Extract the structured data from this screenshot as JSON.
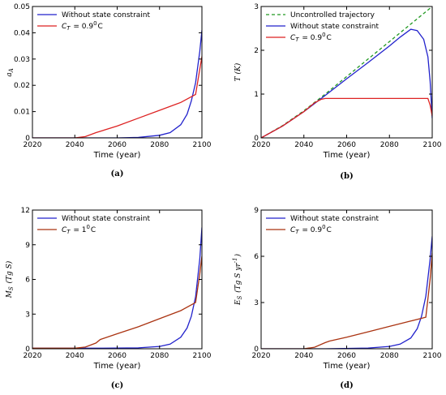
{
  "chart_data": [
    {
      "type": "line",
      "panel_label": "(a)",
      "xlabel": "Time (year)",
      "ylabel": "a_A",
      "xlim": [
        2020,
        2100
      ],
      "ylim": [
        0,
        0.05
      ],
      "xticks": [
        "2020",
        "2040",
        "2060",
        "2080",
        "2100"
      ],
      "yticks": [
        "0",
        "0.01",
        "0.02",
        "0.03",
        "0.04",
        "0.05"
      ],
      "legend_position": "top-left",
      "series": [
        {
          "name": "Without state constraint",
          "color": "#2222cc",
          "x": [
            2020,
            2040,
            2060,
            2070,
            2080,
            2085,
            2090,
            2093,
            2095,
            2097,
            2099,
            2100
          ],
          "y": [
            0,
            0,
            0,
            0.0002,
            0.001,
            0.002,
            0.005,
            0.009,
            0.014,
            0.021,
            0.033,
            0.041
          ]
        },
        {
          "name": "C_T = 0.9°C",
          "color": "#dd2222",
          "x": [
            2020,
            2040,
            2045,
            2050,
            2060,
            2070,
            2080,
            2090,
            2097,
            2100
          ],
          "y": [
            0,
            0,
            0.0005,
            0.002,
            0.0045,
            0.0075,
            0.0105,
            0.0135,
            0.0165,
            0.031
          ]
        }
      ]
    },
    {
      "type": "line",
      "panel_label": "(b)",
      "xlabel": "Time (year)",
      "ylabel": "T (K)",
      "xlim": [
        2020,
        2100
      ],
      "ylim": [
        0,
        3
      ],
      "xticks": [
        "2020",
        "2040",
        "2060",
        "2080",
        "2100"
      ],
      "yticks": [
        "0",
        "1",
        "2",
        "3"
      ],
      "legend_position": "top-left",
      "series": [
        {
          "name": "Uncontrolled trajectory",
          "color": "#229922",
          "dashed": true,
          "x": [
            2020,
            2030,
            2040,
            2050,
            2060,
            2070,
            2080,
            2090,
            2100
          ],
          "y": [
            0,
            0.28,
            0.62,
            1.0,
            1.4,
            1.8,
            2.2,
            2.6,
            3.0
          ]
        },
        {
          "name": "Without state constraint",
          "color": "#2222cc",
          "x": [
            2020,
            2030,
            2040,
            2050,
            2060,
            2070,
            2080,
            2085,
            2090,
            2093,
            2096,
            2098,
            2099,
            2100
          ],
          "y": [
            0,
            0.27,
            0.6,
            0.97,
            1.35,
            1.72,
            2.1,
            2.3,
            2.48,
            2.45,
            2.25,
            1.85,
            1.3,
            0.45
          ]
        },
        {
          "name": "C_T = 0.9°C",
          "color": "#dd2222",
          "x": [
            2020,
            2030,
            2040,
            2045,
            2048,
            2050,
            2070,
            2090,
            2098,
            2099,
            2100
          ],
          "y": [
            0,
            0.27,
            0.6,
            0.8,
            0.88,
            0.9,
            0.9,
            0.9,
            0.9,
            0.75,
            0.5
          ]
        }
      ]
    },
    {
      "type": "line",
      "panel_label": "(c)",
      "xlabel": "Time (year)",
      "ylabel": "M_S (Tg S)",
      "xlim": [
        2020,
        2100
      ],
      "ylim": [
        0,
        12
      ],
      "xticks": [
        "2020",
        "2040",
        "2060",
        "2080",
        "2100"
      ],
      "yticks": [
        "0",
        "3",
        "6",
        "9",
        "12"
      ],
      "legend_position": "top-left",
      "series": [
        {
          "name": "Without state constraint",
          "color": "#2222cc",
          "x": [
            2020,
            2050,
            2070,
            2080,
            2085,
            2090,
            2093,
            2095,
            2097,
            2099,
            2100
          ],
          "y": [
            0.05,
            0.05,
            0.08,
            0.2,
            0.4,
            1.0,
            1.8,
            2.8,
            4.5,
            7.8,
            10.5
          ]
        },
        {
          "name": "C_T = 1°C",
          "color": "#aa3311",
          "x": [
            2020,
            2040,
            2045,
            2050,
            2052,
            2060,
            2070,
            2080,
            2090,
            2097,
            2099,
            2100
          ],
          "y": [
            0.05,
            0.05,
            0.15,
            0.5,
            0.8,
            1.3,
            1.9,
            2.6,
            3.3,
            4.0,
            6.5,
            8.0
          ]
        }
      ]
    },
    {
      "type": "line",
      "panel_label": "(d)",
      "xlabel": "Time (year)",
      "ylabel": "E_S (Tg S yr^-1)",
      "xlim": [
        2020,
        2100
      ],
      "ylim": [
        0,
        9
      ],
      "xticks": [
        "2020",
        "2040",
        "2060",
        "2080",
        "2100"
      ],
      "yticks": [
        "0",
        "3",
        "6",
        "9"
      ],
      "legend_position": "top-left",
      "series": [
        {
          "name": "Without state constraint",
          "color": "#2222cc",
          "x": [
            2020,
            2050,
            2070,
            2080,
            2085,
            2090,
            2093,
            2095,
            2097,
            2099,
            2100
          ],
          "y": [
            0,
            0,
            0.05,
            0.15,
            0.3,
            0.7,
            1.3,
            2.1,
            3.4,
            5.8,
            7.3
          ]
        },
        {
          "name": "C_T = 0.9°C",
          "color": "#aa3311",
          "x": [
            2020,
            2040,
            2045,
            2050,
            2052,
            2060,
            2070,
            2080,
            2090,
            2097,
            2099,
            2100
          ],
          "y": [
            0,
            0,
            0.1,
            0.4,
            0.5,
            0.75,
            1.1,
            1.45,
            1.8,
            2.05,
            4.5,
            6.2
          ]
        }
      ]
    }
  ]
}
